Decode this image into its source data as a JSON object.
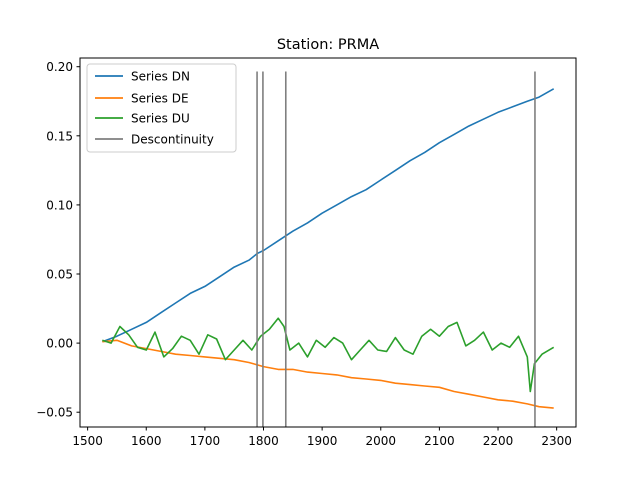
{
  "chart_data": {
    "type": "line",
    "title": "Station: PRMA",
    "xlabel": "",
    "ylabel": "",
    "xlim": [
      1487,
      2333
    ],
    "ylim": [
      -0.0607,
      0.2063
    ],
    "xticks": [
      1500,
      1600,
      1700,
      1800,
      1900,
      2000,
      2100,
      2200,
      2300
    ],
    "xtick_labels": [
      "1500",
      "1600",
      "1700",
      "1800",
      "1900",
      "2000",
      "2100",
      "2200",
      "2300"
    ],
    "yticks": [
      -0.05,
      0.0,
      0.05,
      0.1,
      0.15,
      0.2
    ],
    "ytick_labels": [
      "−0.05",
      "0.00",
      "0.05",
      "0.10",
      "0.15",
      "0.20"
    ],
    "grid": false,
    "legend_position": "top-left",
    "series": [
      {
        "name": "Series DN",
        "color": "#1f77b4",
        "x": [
          1525,
          1550,
          1575,
          1600,
          1625,
          1650,
          1675,
          1700,
          1725,
          1750,
          1775,
          1790,
          1800,
          1825,
          1850,
          1875,
          1900,
          1925,
          1950,
          1975,
          2000,
          2025,
          2050,
          2075,
          2100,
          2125,
          2150,
          2175,
          2200,
          2225,
          2250,
          2270,
          2295
        ],
        "y": [
          0.001,
          0.005,
          0.01,
          0.015,
          0.022,
          0.029,
          0.036,
          0.041,
          0.048,
          0.055,
          0.06,
          0.065,
          0.067,
          0.074,
          0.081,
          0.087,
          0.094,
          0.1,
          0.106,
          0.111,
          0.118,
          0.125,
          0.132,
          0.138,
          0.145,
          0.151,
          0.157,
          0.162,
          0.167,
          0.171,
          0.175,
          0.178,
          0.184
        ]
      },
      {
        "name": "Series DE",
        "color": "#ff7f0e",
        "x": [
          1525,
          1550,
          1575,
          1600,
          1625,
          1650,
          1675,
          1700,
          1725,
          1750,
          1775,
          1800,
          1825,
          1850,
          1875,
          1900,
          1925,
          1950,
          1975,
          2000,
          2025,
          2050,
          2075,
          2100,
          2125,
          2150,
          2175,
          2200,
          2225,
          2250,
          2270,
          2295
        ],
        "y": [
          0.001,
          0.002,
          -0.002,
          -0.004,
          -0.006,
          -0.008,
          -0.009,
          -0.01,
          -0.011,
          -0.012,
          -0.014,
          -0.017,
          -0.019,
          -0.019,
          -0.021,
          -0.022,
          -0.023,
          -0.025,
          -0.026,
          -0.027,
          -0.029,
          -0.03,
          -0.031,
          -0.032,
          -0.035,
          -0.037,
          -0.039,
          -0.041,
          -0.042,
          -0.044,
          -0.046,
          -0.047
        ]
      },
      {
        "name": "Series DU",
        "color": "#2ca02c",
        "x": [
          1525,
          1540,
          1555,
          1570,
          1585,
          1600,
          1615,
          1630,
          1645,
          1660,
          1675,
          1690,
          1705,
          1720,
          1735,
          1750,
          1765,
          1780,
          1795,
          1810,
          1825,
          1835,
          1845,
          1860,
          1875,
          1890,
          1905,
          1920,
          1935,
          1950,
          1965,
          1980,
          1995,
          2010,
          2025,
          2040,
          2055,
          2070,
          2085,
          2100,
          2115,
          2130,
          2145,
          2160,
          2175,
          2190,
          2205,
          2220,
          2235,
          2250,
          2255,
          2262,
          2275,
          2295
        ],
        "y": [
          0.002,
          0.0,
          0.012,
          0.006,
          -0.003,
          -0.005,
          0.008,
          -0.01,
          -0.004,
          0.005,
          0.002,
          -0.008,
          0.006,
          0.003,
          -0.012,
          -0.005,
          0.002,
          -0.005,
          0.005,
          0.01,
          0.018,
          0.012,
          -0.005,
          0.0,
          -0.01,
          0.002,
          -0.003,
          0.004,
          0.0,
          -0.012,
          -0.005,
          0.002,
          -0.005,
          -0.006,
          0.004,
          -0.005,
          -0.008,
          0.005,
          0.01,
          0.005,
          0.012,
          0.015,
          -0.002,
          0.002,
          0.008,
          -0.005,
          0.0,
          -0.003,
          0.005,
          -0.01,
          -0.035,
          -0.015,
          -0.008,
          -0.003
        ]
      }
    ],
    "discontinuities": {
      "name": "Descontinuity",
      "color": "#7f7f7f",
      "x": [
        1789,
        1799,
        1838,
        2263
      ],
      "y_range": [
        -0.0605,
        0.1965
      ]
    }
  }
}
